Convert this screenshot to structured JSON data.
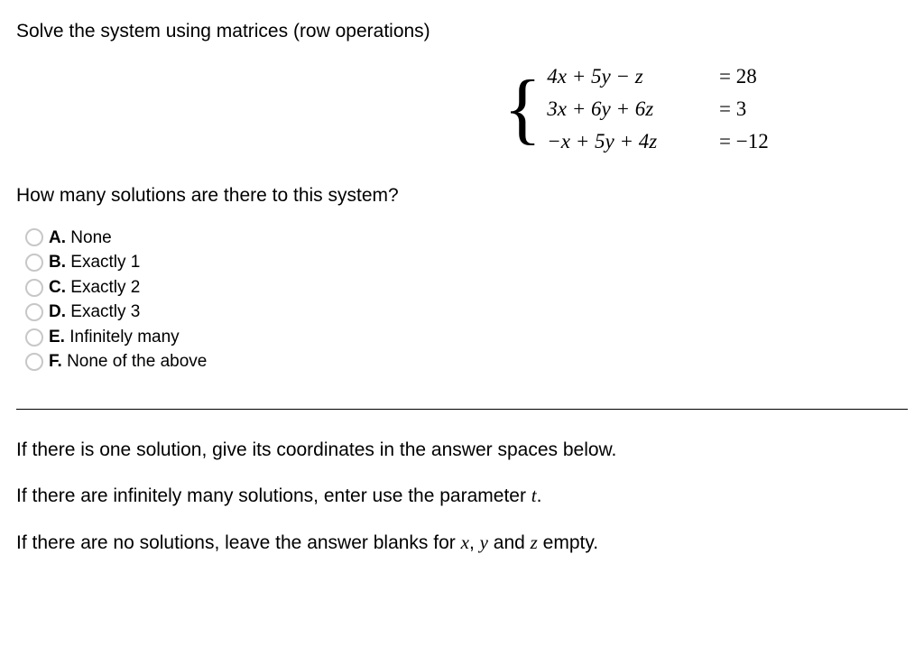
{
  "question": {
    "prompt": "Solve the system using matrices (row operations)",
    "sub_prompt": "How many solutions are there to this system?"
  },
  "system": {
    "equations": [
      {
        "lhs": "4x + 5y − z",
        "rhs": "= 28"
      },
      {
        "lhs": "3x + 6y + 6z",
        "rhs": "= 3"
      },
      {
        "lhs": "−x + 5y + 4z",
        "rhs": "= −12"
      }
    ]
  },
  "options": [
    {
      "letter": "A.",
      "text": "None"
    },
    {
      "letter": "B.",
      "text": "Exactly 1"
    },
    {
      "letter": "C.",
      "text": "Exactly 2"
    },
    {
      "letter": "D.",
      "text": "Exactly 3"
    },
    {
      "letter": "E.",
      "text": "Infinitely many"
    },
    {
      "letter": "F.",
      "text": "None of the above"
    }
  ],
  "instructions": {
    "one_solution_pre": "If there is one solution, give its coordinates in the answer spaces below.",
    "inf_pre": "If there are infinitely many solutions, enter use the parameter ",
    "inf_var": "t",
    "inf_post": ".",
    "none_pre": "If there are no solutions, leave the answer blanks for ",
    "var_x": "x",
    "comma": ", ",
    "var_y": "y",
    "and": " and ",
    "var_z": "z",
    "none_post": " empty."
  },
  "style": {
    "background_color": "#ffffff",
    "text_color": "#000000",
    "radio_border_color": "#c7c7c7",
    "body_fontsize": 21,
    "option_fontsize": 19,
    "equation_fontsize": 23,
    "brace_fontsize": 88,
    "hr_color": "#000000"
  }
}
